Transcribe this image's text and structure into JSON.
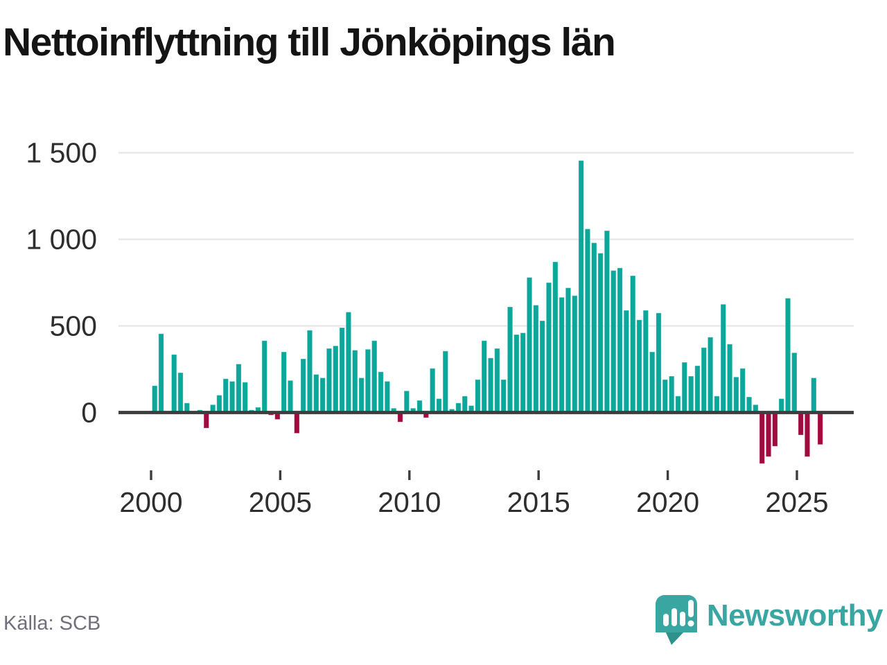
{
  "header": {
    "title": "Nettoinflyttning till Jönköpings län"
  },
  "footer": {
    "source_label": "Källa: SCB",
    "logo_text": "Newsworthy",
    "logo_icon": "newsworthy-speech-bubble-bar-chart-icon"
  },
  "colors": {
    "positive_bar": "#0ca79b",
    "negative_bar": "#a00a3e",
    "gridline": "#e6e6e6",
    "axis_line": "#3d3d3d",
    "axis_text": "#2e2e2e",
    "title_text": "#141414",
    "source_text": "#6f707a",
    "logo_teal": "#3aa6a1",
    "logo_tail_teal": "#2e918c"
  },
  "chart_data": {
    "type": "bar",
    "title": "Nettoinflyttning till Jönköpings län",
    "x_unit": "quarter",
    "frequency": "quarterly",
    "x_start": "2000-Q1",
    "x_end": "2025-Q4",
    "x_tick_labels": [
      "2000",
      "2005",
      "2010",
      "2015",
      "2020",
      "2025"
    ],
    "y_ticks": [
      0,
      500,
      1000,
      1500
    ],
    "y_tick_labels": [
      "0",
      "500",
      "1 000",
      "1 500"
    ],
    "ylim": [
      -350,
      1600
    ],
    "grid": "horizontal",
    "legend": "none",
    "series": [
      {
        "name": "Nettoinflyttning",
        "values": [
          155,
          455,
          5,
          335,
          230,
          55,
          5,
          15,
          -90,
          45,
          100,
          195,
          180,
          280,
          175,
          15,
          30,
          415,
          -15,
          -40,
          350,
          185,
          -120,
          310,
          475,
          220,
          200,
          370,
          385,
          490,
          580,
          360,
          200,
          365,
          415,
          235,
          180,
          25,
          -55,
          125,
          25,
          70,
          -30,
          255,
          80,
          355,
          20,
          55,
          95,
          40,
          190,
          415,
          315,
          370,
          190,
          610,
          450,
          460,
          780,
          620,
          530,
          750,
          870,
          665,
          720,
          675,
          1455,
          1060,
          980,
          920,
          1050,
          820,
          835,
          590,
          790,
          535,
          590,
          350,
          575,
          190,
          210,
          95,
          290,
          210,
          270,
          375,
          435,
          95,
          625,
          395,
          205,
          255,
          90,
          45,
          -295,
          -255,
          -195,
          80,
          660,
          345,
          -130,
          -255,
          200,
          -185
        ]
      }
    ]
  }
}
